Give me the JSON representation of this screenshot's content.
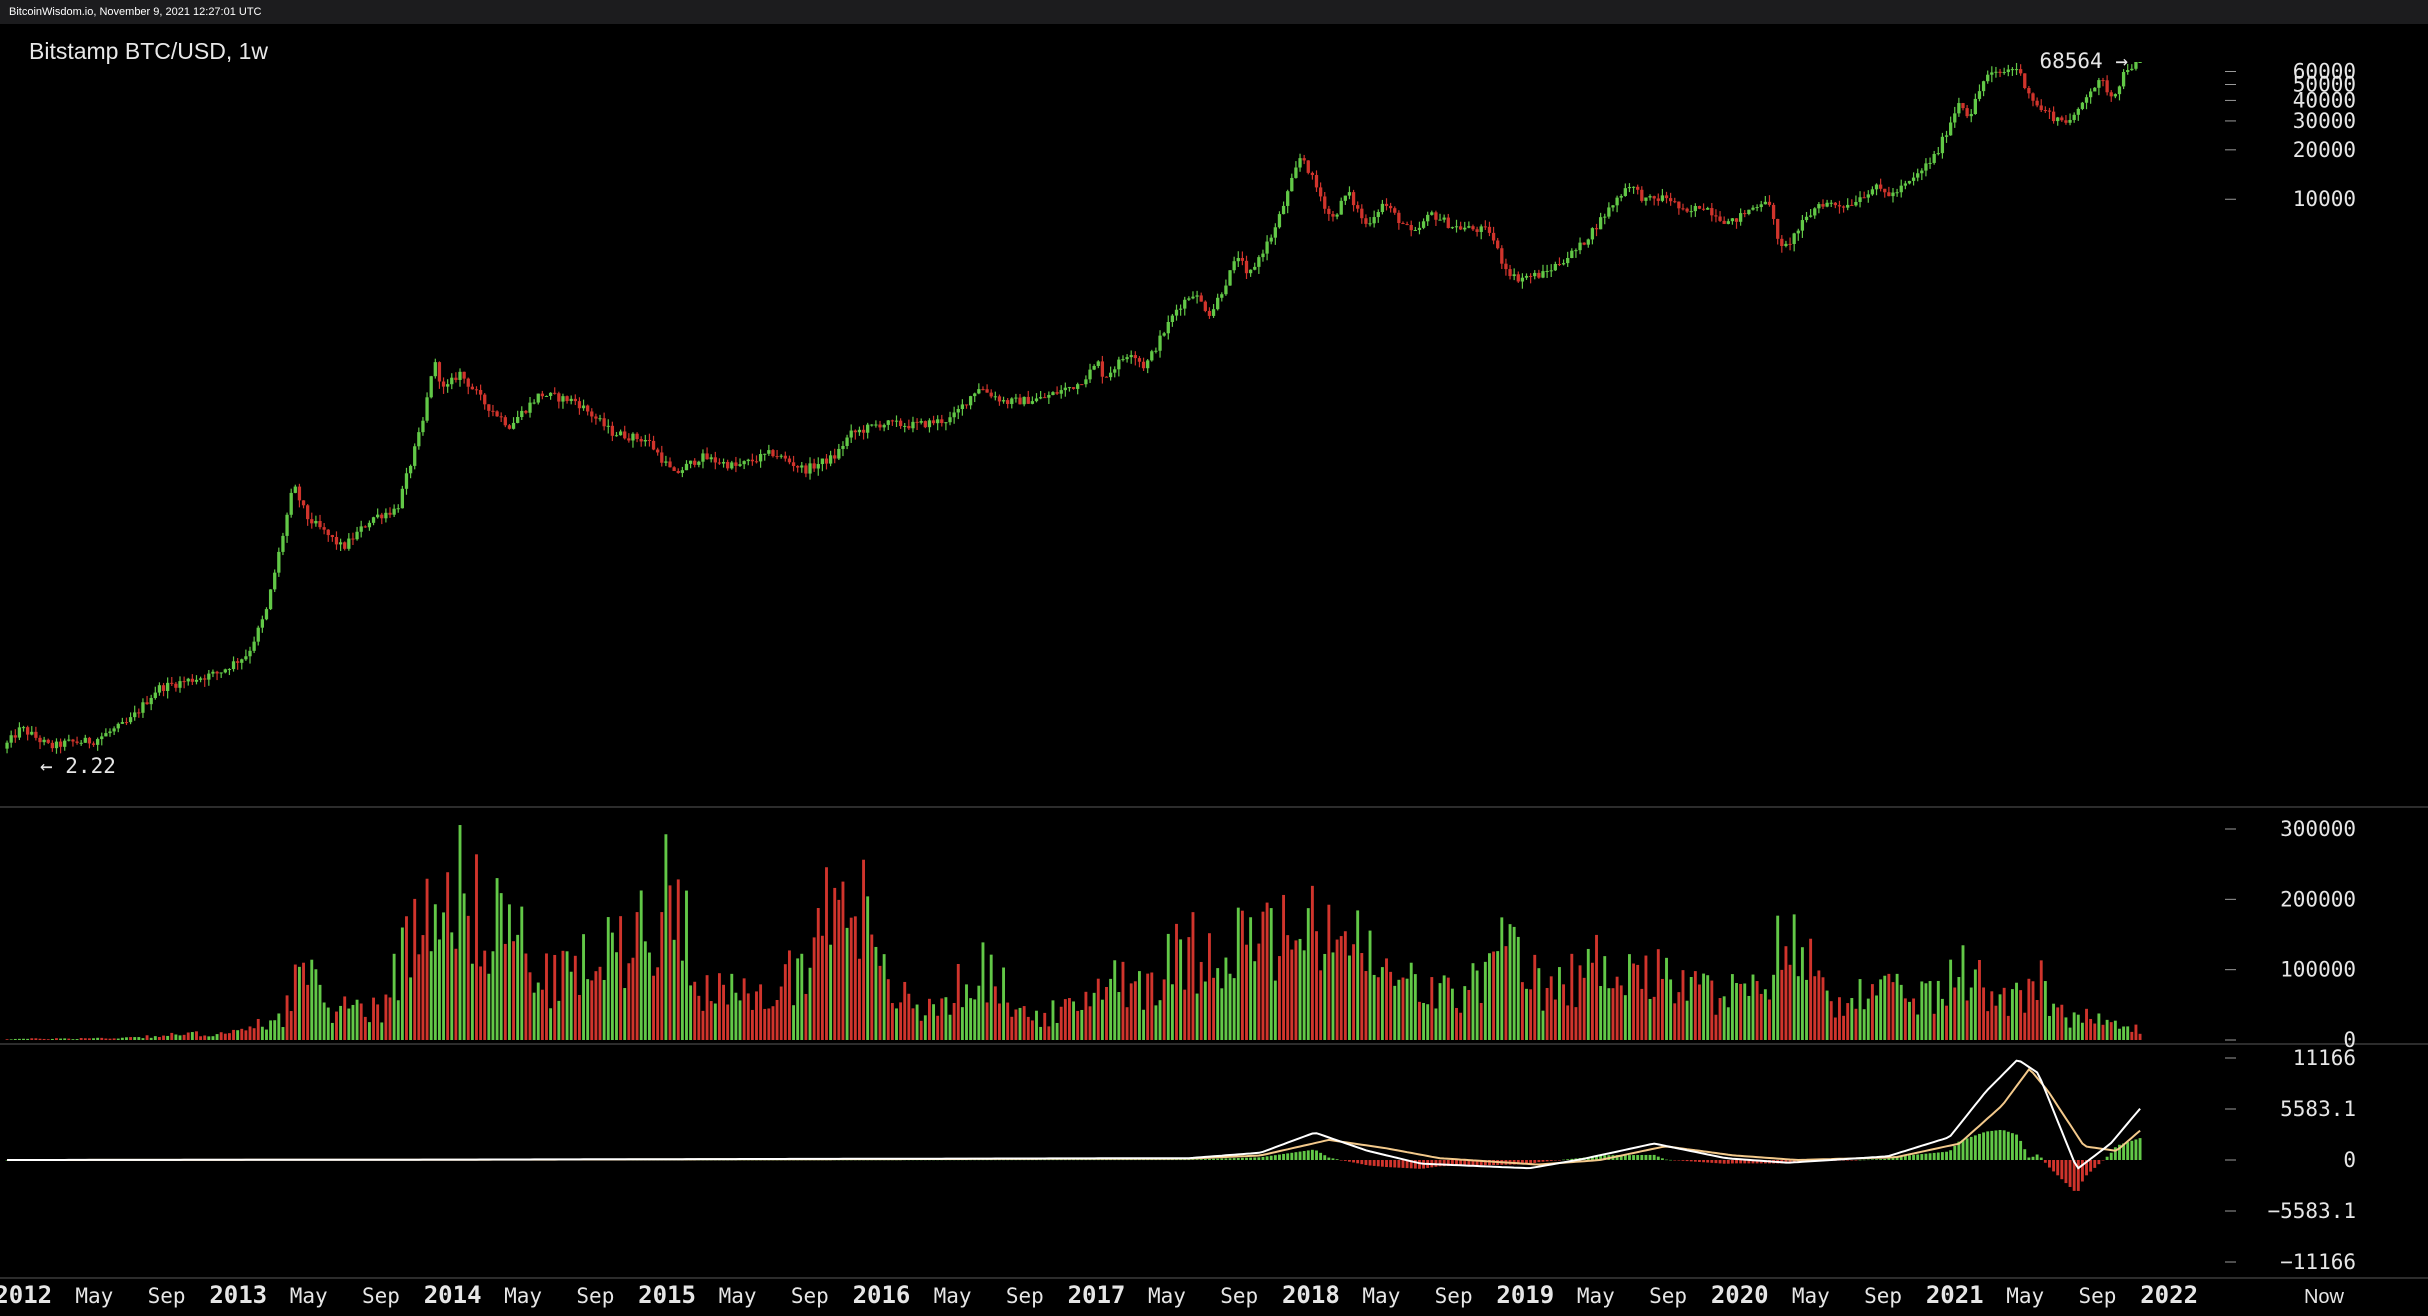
{
  "header": {
    "watermark": "BitcoinWisdom.io, November 9, 2021 12:27:01 UTC"
  },
  "chart": {
    "title": "Bitstamp BTC/USD, 1w",
    "high_label": "68564 →",
    "low_label": "← 2.22",
    "now_label": "Now"
  },
  "colors": {
    "up": "#62c847",
    "down": "#d0342c",
    "macd_line": "#ffffff",
    "signal_line": "#f3c98b",
    "axis_text": "#e6e6e6",
    "background": "#000000"
  },
  "chart_data": [
    {
      "type": "candlestick",
      "title": "Bitstamp BTC/USD, 1w",
      "y_scale": "log",
      "y_ticks": [
        10000,
        20000,
        30000,
        40000,
        50000,
        60000
      ],
      "y_tick_labels": [
        "10000",
        "20000",
        "30000",
        "40000",
        "50000",
        "60000"
      ],
      "annotations": {
        "max": 68564,
        "min": 2.22
      },
      "price_path": [
        [
          "2011-12-01",
          4.5
        ],
        [
          "2012-01-01",
          6.0
        ],
        [
          "2012-02-20",
          4.6
        ],
        [
          "2012-03-20",
          4.9
        ],
        [
          "2012-05-01",
          5.0
        ],
        [
          "2012-07-01",
          6.5
        ],
        [
          "2012-08-20",
          10.5
        ],
        [
          "2012-10-01",
          11.5
        ],
        [
          "2012-12-01",
          13.0
        ],
        [
          "2013-01-20",
          17.0
        ],
        [
          "2013-02-20",
          30.0
        ],
        [
          "2013-04-08",
          180.0
        ],
        [
          "2013-05-01",
          115.0
        ],
        [
          "2013-07-01",
          75.0
        ],
        [
          "2013-08-20",
          115.0
        ],
        [
          "2013-10-01",
          130.0
        ],
        [
          "2013-11-15",
          450.0
        ],
        [
          "2013-12-02",
          1050.0
        ],
        [
          "2013-12-20",
          680.0
        ],
        [
          "2014-01-15",
          880.0
        ],
        [
          "2014-02-25",
          580.0
        ],
        [
          "2014-04-10",
          420.0
        ],
        [
          "2014-06-01",
          650.0
        ],
        [
          "2014-08-01",
          590.0
        ],
        [
          "2014-10-01",
          380.0
        ],
        [
          "2014-12-01",
          340.0
        ],
        [
          "2015-01-15",
          210.0
        ],
        [
          "2015-03-01",
          270.0
        ],
        [
          "2015-05-01",
          235.0
        ],
        [
          "2015-07-01",
          285.0
        ],
        [
          "2015-08-25",
          225.0
        ],
        [
          "2015-10-15",
          270.0
        ],
        [
          "2015-11-10",
          370.0
        ],
        [
          "2016-01-01",
          430.0
        ],
        [
          "2016-03-01",
          420.0
        ],
        [
          "2016-05-01",
          460.0
        ],
        [
          "2016-06-15",
          720.0
        ],
        [
          "2016-08-01",
          580.0
        ],
        [
          "2016-10-01",
          610.0
        ],
        [
          "2016-12-01",
          750.0
        ],
        [
          "2017-01-05",
          1000.0
        ],
        [
          "2017-01-15",
          820.0
        ],
        [
          "2017-03-01",
          1200.0
        ],
        [
          "2017-03-25",
          950.0
        ],
        [
          "2017-05-20",
          2200.0
        ],
        [
          "2017-06-15",
          2700.0
        ],
        [
          "2017-07-15",
          2000.0
        ],
        [
          "2017-09-01",
          4600.0
        ],
        [
          "2017-09-15",
          3300.0
        ],
        [
          "2017-11-01",
          6500.0
        ],
        [
          "2017-12-17",
          19000.0
        ],
        [
          "2018-01-01",
          14000.0
        ],
        [
          "2018-02-06",
          7500.0
        ],
        [
          "2018-03-05",
          11000.0
        ],
        [
          "2018-04-05",
          7000.0
        ],
        [
          "2018-05-05",
          9500.0
        ],
        [
          "2018-06-25",
          6000.0
        ],
        [
          "2018-07-25",
          8200.0
        ],
        [
          "2018-09-01",
          6800.0
        ],
        [
          "2018-11-01",
          6400.0
        ],
        [
          "2018-11-25",
          4000.0
        ],
        [
          "2018-12-15",
          3300.0
        ],
        [
          "2019-02-01",
          3500.0
        ],
        [
          "2019-04-01",
          5000.0
        ],
        [
          "2019-05-15",
          8000.0
        ],
        [
          "2019-06-26",
          12500.0
        ],
        [
          "2019-07-25",
          9800.0
        ],
        [
          "2019-09-01",
          10300.0
        ],
        [
          "2019-10-01",
          8000.0
        ],
        [
          "2019-10-28",
          9300.0
        ],
        [
          "2019-12-15",
          7100.0
        ],
        [
          "2020-02-15",
          10200.0
        ],
        [
          "2020-03-13",
          4800.0
        ],
        [
          "2020-04-15",
          7000.0
        ],
        [
          "2020-05-15",
          9500.0
        ],
        [
          "2020-07-01",
          9200.0
        ],
        [
          "2020-08-15",
          11800.0
        ],
        [
          "2020-09-15",
          10600.0
        ],
        [
          "2020-10-20",
          13000.0
        ],
        [
          "2020-12-01",
          19000.0
        ],
        [
          "2021-01-08",
          40000.0
        ],
        [
          "2021-01-25",
          32000.0
        ],
        [
          "2021-02-21",
          56000.0
        ],
        [
          "2021-03-15",
          58000.0
        ],
        [
          "2021-04-14",
          64000.0
        ],
        [
          "2021-05-19",
          37000.0
        ],
        [
          "2021-06-22",
          31000.0
        ],
        [
          "2021-07-20",
          30000.0
        ],
        [
          "2021-08-15",
          46000.0
        ],
        [
          "2021-09-07",
          52000.0
        ],
        [
          "2021-09-25",
          42000.0
        ],
        [
          "2021-10-20",
          64000.0
        ],
        [
          "2021-11-09",
          67000.0
        ]
      ]
    },
    {
      "type": "bar",
      "name": "volume",
      "y_ticks": [
        0,
        100000,
        200000,
        300000
      ],
      "y_tick_labels": [
        "0",
        "100000",
        "200000",
        "300000"
      ],
      "volume_path": [
        [
          "2011-12-01",
          1500
        ],
        [
          "2012-06-01",
          3000
        ],
        [
          "2012-10-01",
          9000
        ],
        [
          "2013-01-01",
          12000
        ],
        [
          "2013-03-15",
          40000
        ],
        [
          "2013-04-10",
          110000
        ],
        [
          "2013-06-01",
          50000
        ],
        [
          "2013-09-01",
          55000
        ],
        [
          "2013-11-20",
          240000
        ],
        [
          "2013-12-10",
          290000
        ],
        [
          "2014-02-01",
          200000
        ],
        [
          "2014-04-01",
          190000
        ],
        [
          "2014-06-01",
          90000
        ],
        [
          "2014-09-15",
          130000
        ],
        [
          "2015-01-15",
          240000
        ],
        [
          "2015-03-01",
          80000
        ],
        [
          "2015-06-01",
          60000
        ],
        [
          "2015-08-25",
          130000
        ],
        [
          "2015-11-05",
          300000
        ],
        [
          "2015-12-15",
          110000
        ],
        [
          "2016-03-01",
          40000
        ],
        [
          "2016-06-20",
          110000
        ],
        [
          "2016-09-01",
          35000
        ],
        [
          "2016-12-01",
          50000
        ],
        [
          "2017-01-10",
          110000
        ],
        [
          "2017-03-15",
          90000
        ],
        [
          "2017-06-01",
          140000
        ],
        [
          "2017-09-15",
          160000
        ],
        [
          "2017-12-15",
          160000
        ],
        [
          "2018-02-06",
          180000
        ],
        [
          "2018-05-01",
          100000
        ],
        [
          "2018-09-01",
          65000
        ],
        [
          "2018-11-25",
          140000
        ],
        [
          "2019-02-01",
          70000
        ],
        [
          "2019-05-15",
          130000
        ],
        [
          "2019-07-01",
          110000
        ],
        [
          "2019-10-01",
          80000
        ],
        [
          "2020-01-15",
          70000
        ],
        [
          "2020-03-13",
          160000
        ],
        [
          "2020-06-01",
          70000
        ],
        [
          "2020-09-01",
          70000
        ],
        [
          "2020-12-01",
          70000
        ],
        [
          "2021-01-10",
          110000
        ],
        [
          "2021-03-01",
          70000
        ],
        [
          "2021-05-19",
          90000
        ],
        [
          "2021-07-01",
          40000
        ],
        [
          "2021-11-09",
          15000
        ]
      ]
    },
    {
      "type": "line",
      "name": "MACD",
      "y_ticks": [
        -11166,
        -5583.1,
        0,
        5583.1,
        11166
      ],
      "y_tick_labels": [
        "−11166",
        "−5583.1",
        "0",
        "5583.1",
        "11166"
      ],
      "macd_path": [
        [
          "2011-12-01",
          0
        ],
        [
          "2013-12-01",
          40
        ],
        [
          "2017-06-01",
          200
        ],
        [
          "2017-10-01",
          800
        ],
        [
          "2018-01-01",
          3000
        ],
        [
          "2018-04-01",
          1000
        ],
        [
          "2018-07-01",
          -400
        ],
        [
          "2019-01-01",
          -900
        ],
        [
          "2019-04-01",
          100
        ],
        [
          "2019-08-01",
          1800
        ],
        [
          "2019-12-01",
          200
        ],
        [
          "2020-03-15",
          -300
        ],
        [
          "2020-09-01",
          400
        ],
        [
          "2020-12-15",
          2500
        ],
        [
          "2021-02-15",
          7500
        ],
        [
          "2021-04-10",
          11000
        ],
        [
          "2021-05-15",
          9500
        ],
        [
          "2021-07-20",
          -1000
        ],
        [
          "2021-09-15",
          1800
        ],
        [
          "2021-11-09",
          6000
        ]
      ],
      "signal_path": [
        [
          "2011-12-01",
          0
        ],
        [
          "2013-12-01",
          30
        ],
        [
          "2017-06-01",
          150
        ],
        [
          "2017-10-01",
          500
        ],
        [
          "2018-01-25",
          2200
        ],
        [
          "2018-05-01",
          1300
        ],
        [
          "2018-08-01",
          200
        ],
        [
          "2019-01-15",
          -500
        ],
        [
          "2019-05-01",
          0
        ],
        [
          "2019-08-20",
          1500
        ],
        [
          "2019-12-15",
          500
        ],
        [
          "2020-04-01",
          0
        ],
        [
          "2020-09-15",
          300
        ],
        [
          "2021-01-01",
          1800
        ],
        [
          "2021-03-15",
          6000
        ],
        [
          "2021-04-30",
          10000
        ],
        [
          "2021-06-01",
          7500
        ],
        [
          "2021-08-01",
          1500
        ],
        [
          "2021-09-25",
          1000
        ],
        [
          "2021-11-09",
          3500
        ]
      ]
    }
  ],
  "x_axis": {
    "labels": [
      {
        "date": "2012-01-01",
        "text": "2012",
        "major": true
      },
      {
        "date": "2012-05-01",
        "text": "May",
        "major": false
      },
      {
        "date": "2012-09-01",
        "text": "Sep",
        "major": false
      },
      {
        "date": "2013-01-01",
        "text": "2013",
        "major": true
      },
      {
        "date": "2013-05-01",
        "text": "May",
        "major": false
      },
      {
        "date": "2013-09-01",
        "text": "Sep",
        "major": false
      },
      {
        "date": "2014-01-01",
        "text": "2014",
        "major": true
      },
      {
        "date": "2014-05-01",
        "text": "May",
        "major": false
      },
      {
        "date": "2014-09-01",
        "text": "Sep",
        "major": false
      },
      {
        "date": "2015-01-01",
        "text": "2015",
        "major": true
      },
      {
        "date": "2015-05-01",
        "text": "May",
        "major": false
      },
      {
        "date": "2015-09-01",
        "text": "Sep",
        "major": false
      },
      {
        "date": "2016-01-01",
        "text": "2016",
        "major": true
      },
      {
        "date": "2016-05-01",
        "text": "May",
        "major": false
      },
      {
        "date": "2016-09-01",
        "text": "Sep",
        "major": false
      },
      {
        "date": "2017-01-01",
        "text": "2017",
        "major": true
      },
      {
        "date": "2017-05-01",
        "text": "May",
        "major": false
      },
      {
        "date": "2017-09-01",
        "text": "Sep",
        "major": false
      },
      {
        "date": "2018-01-01",
        "text": "2018",
        "major": true
      },
      {
        "date": "2018-05-01",
        "text": "May",
        "major": false
      },
      {
        "date": "2018-09-01",
        "text": "Sep",
        "major": false
      },
      {
        "date": "2019-01-01",
        "text": "2019",
        "major": true
      },
      {
        "date": "2019-05-01",
        "text": "May",
        "major": false
      },
      {
        "date": "2019-09-01",
        "text": "Sep",
        "major": false
      },
      {
        "date": "2020-01-01",
        "text": "2020",
        "major": true
      },
      {
        "date": "2020-05-01",
        "text": "May",
        "major": false
      },
      {
        "date": "2020-09-01",
        "text": "Sep",
        "major": false
      },
      {
        "date": "2021-01-01",
        "text": "2021",
        "major": true
      },
      {
        "date": "2021-05-01",
        "text": "May",
        "major": false
      },
      {
        "date": "2021-09-01",
        "text": "Sep",
        "major": false
      },
      {
        "date": "2022-01-01",
        "text": "2022",
        "major": true
      }
    ]
  }
}
